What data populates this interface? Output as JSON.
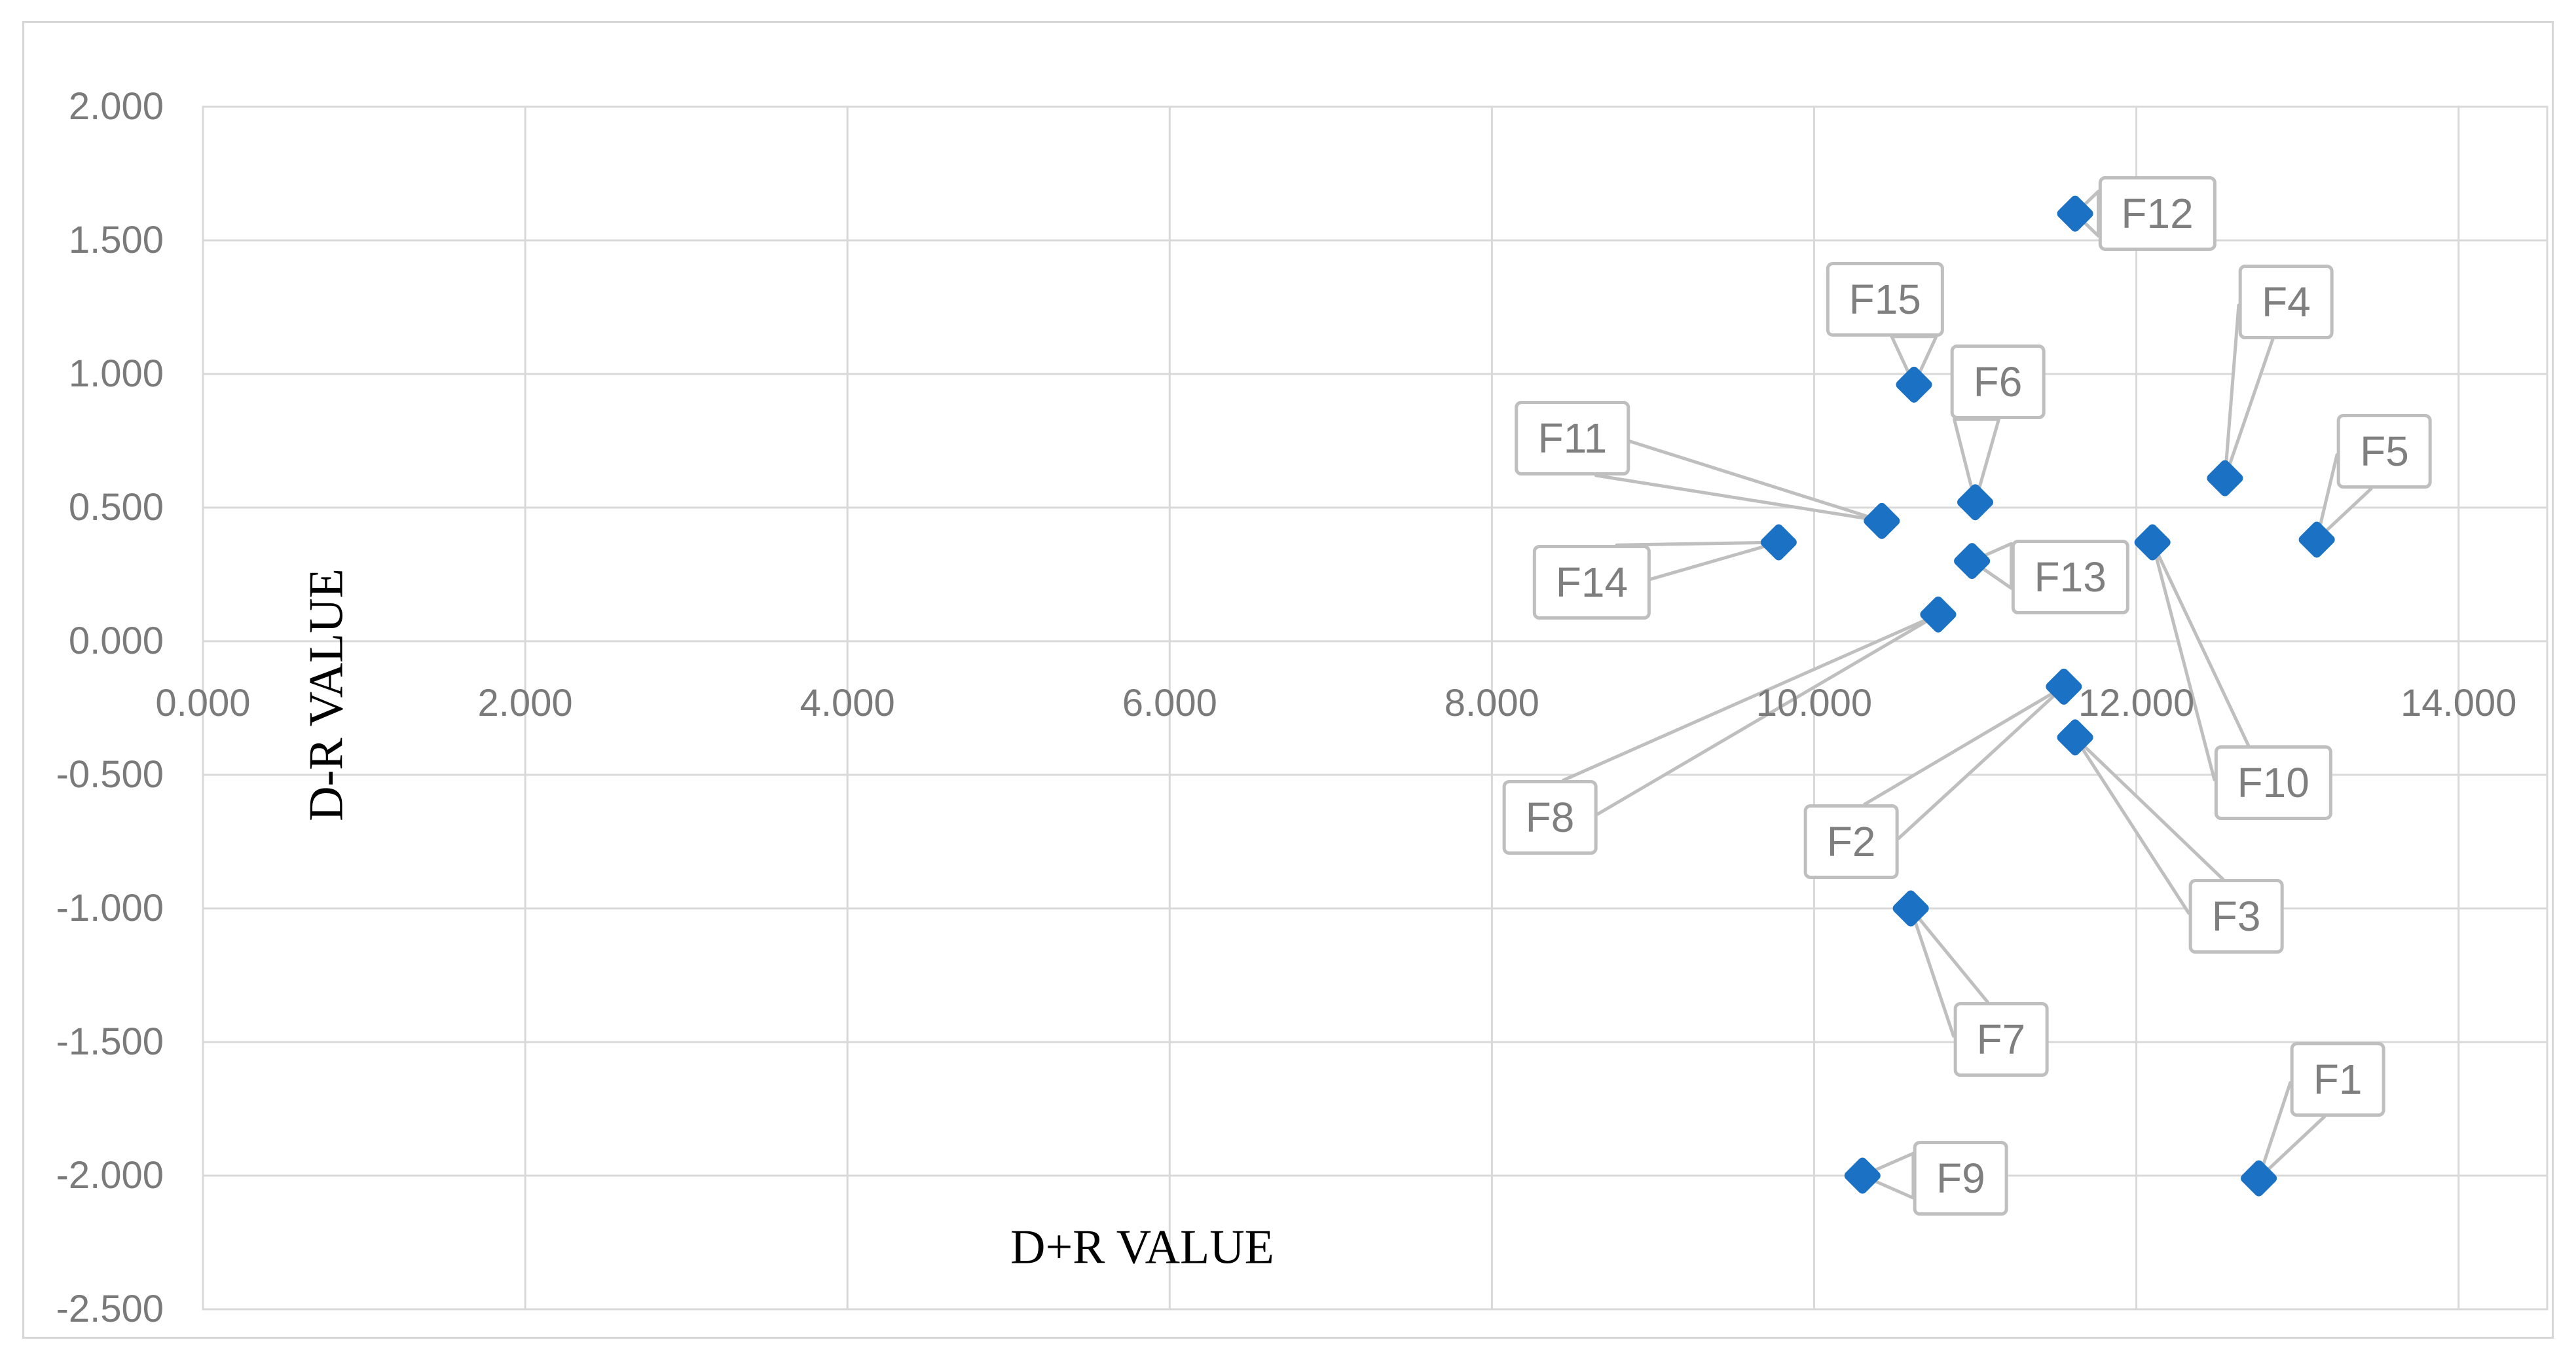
{
  "chart_data": {
    "type": "scatter",
    "title": "",
    "xlabel": "D+R VALUE",
    "ylabel": "D-R VALUE",
    "grid": true,
    "legend": false,
    "x_axis": {
      "min": 0,
      "max": 14.55,
      "major_unit": 2,
      "tick_values": [
        0,
        2,
        4,
        6,
        8,
        10,
        12,
        14
      ],
      "tick_labels": [
        "0.000",
        "2.000",
        "4.000",
        "6.000",
        "8.000",
        "10.000",
        "12.000",
        "14.000"
      ]
    },
    "y_axis": {
      "min": -2.5,
      "max": 2.0,
      "major_unit": 0.5,
      "tick_values": [
        2.0,
        1.5,
        1.0,
        0.5,
        0.0,
        -0.5,
        -1.0,
        -1.5,
        -2.0,
        -2.5
      ],
      "tick_labels": [
        "2.000",
        "1.500",
        "1.000",
        "0.500",
        "0.000",
        "-0.500",
        "-1.000",
        "-1.500",
        "-2.000",
        "-2.500"
      ]
    },
    "points": [
      {
        "label": "F1",
        "x": 12.76,
        "y": -2.01,
        "label_x": 13.25,
        "label_y": -1.64
      },
      {
        "label": "F2",
        "x": 11.55,
        "y": -0.17,
        "label_x": 10.23,
        "label_y": -0.75
      },
      {
        "label": "F3",
        "x": 11.62,
        "y": -0.36,
        "label_x": 12.62,
        "label_y": -1.03
      },
      {
        "label": "F4",
        "x": 12.55,
        "y": 0.61,
        "label_x": 12.93,
        "label_y": 1.27
      },
      {
        "label": "F5",
        "x": 13.12,
        "y": 0.38,
        "label_x": 13.54,
        "label_y": 0.71
      },
      {
        "label": "F6",
        "x": 11.0,
        "y": 0.52,
        "label_x": 11.14,
        "label_y": 0.97
      },
      {
        "label": "F7",
        "x": 10.6,
        "y": -1.0,
        "label_x": 11.16,
        "label_y": -1.49
      },
      {
        "label": "F8",
        "x": 10.77,
        "y": 0.1,
        "label_x": 8.36,
        "label_y": -0.66
      },
      {
        "label": "F9",
        "x": 10.3,
        "y": -2.0,
        "label_x": 10.91,
        "label_y": -2.01
      },
      {
        "label": "F10",
        "x": 12.1,
        "y": 0.37,
        "label_x": 12.85,
        "label_y": -0.53
      },
      {
        "label": "F11",
        "x": 10.42,
        "y": 0.45,
        "label_x": 8.5,
        "label_y": 0.76
      },
      {
        "label": "F12",
        "x": 11.62,
        "y": 1.6,
        "label_x": 12.13,
        "label_y": 1.6
      },
      {
        "label": "F13",
        "x": 10.98,
        "y": 0.3,
        "label_x": 11.59,
        "label_y": 0.24
      },
      {
        "label": "F14",
        "x": 9.78,
        "y": 0.37,
        "label_x": 8.62,
        "label_y": 0.22
      },
      {
        "label": "F15",
        "x": 10.62,
        "y": 0.96,
        "label_x": 10.44,
        "label_y": 1.28
      }
    ],
    "colors": {
      "marker": "#1b72c4",
      "callout_border": "#bfbfbf",
      "callout_text": "#7f7f7f",
      "leader_line": "#bfbfbf",
      "gridline": "#d9d9d9",
      "tick_label": "#7a7a7a",
      "axis_title": "#000000",
      "chart_border": "#d6d6d6",
      "background": "#ffffff"
    }
  }
}
